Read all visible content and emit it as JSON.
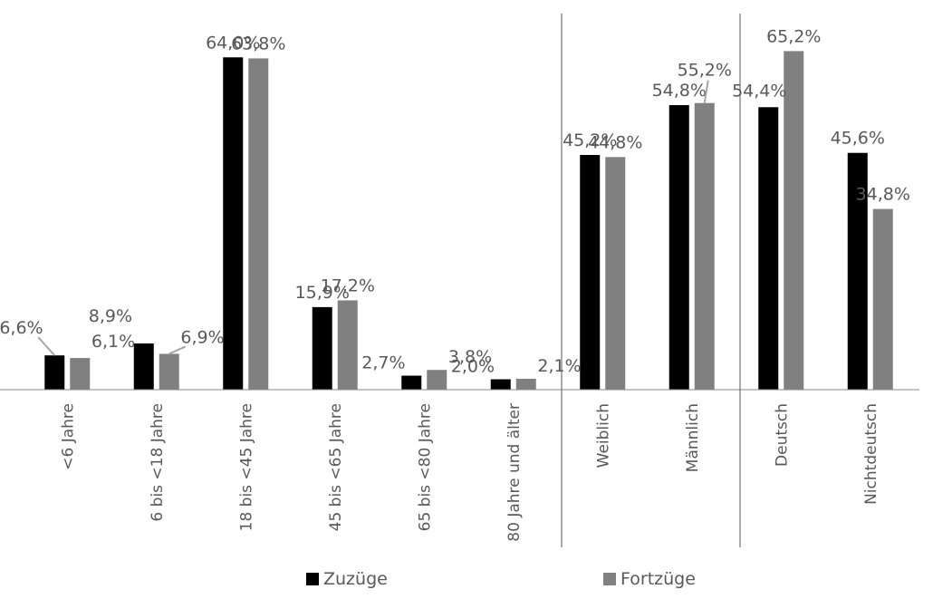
{
  "chart_data": {
    "type": "bar",
    "categories": [
      "<6 Jahre",
      "6 bis <18 Jahre",
      "18 bis <45 Jahre",
      "45 bis <65 Jahre",
      "65 bis <80 Jahre",
      "80 Jahre und älter",
      "Weiblich",
      "Männlich",
      "Deutsch",
      "Nichtdeutsch"
    ],
    "series": [
      {
        "name": "Zuzüge",
        "values": [
          6.6,
          8.9,
          64.0,
          15.9,
          2.7,
          2.0,
          45.2,
          54.8,
          54.4,
          45.6
        ],
        "labels": [
          "6,6%",
          "8,9%",
          "64,0%",
          "15,9%",
          "2,7%",
          "2,0%",
          "45,2%",
          "54,8%",
          "54,4%",
          "45,6%"
        ],
        "color": "#000000"
      },
      {
        "name": "Fortzüge",
        "values": [
          6.1,
          6.9,
          63.8,
          17.2,
          3.8,
          2.1,
          44.8,
          55.2,
          65.2,
          34.8
        ],
        "labels": [
          "6,1%",
          "6,9%",
          "63,8%",
          "17,2%",
          "3,8%",
          "2,1%",
          "44,8%",
          "55,2%",
          "65,2%",
          "34,8%"
        ],
        "color": "#808080"
      }
    ],
    "group_separators_after_category_index": [
      5,
      7
    ],
    "ylim": [
      0,
      70
    ],
    "title": "",
    "xlabel": "",
    "ylabel": "",
    "grid": false,
    "legend_position": "bottom"
  }
}
